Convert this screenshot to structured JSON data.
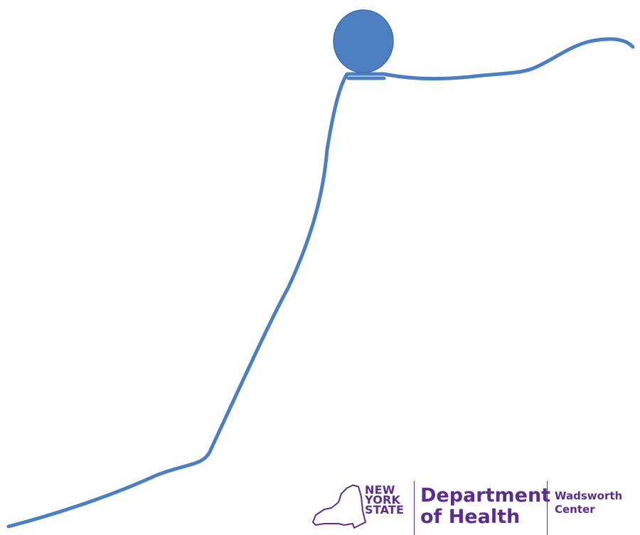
{
  "colors": {
    "curve": "#4a7fc1",
    "ball": "#4d80c3",
    "ball_stroke": "#3f6fae",
    "logo": "#5b2d8e",
    "background": "#ffffff"
  },
  "logo": {
    "state_line1": "NEW",
    "state_line2": "YORK",
    "state_line3": "STATE",
    "dept_line1": "Department",
    "dept_line2": "of Health",
    "center_line1": "Wadsworth",
    "center_line2": "Center",
    "icon": "new-york-state-outline-icon"
  }
}
